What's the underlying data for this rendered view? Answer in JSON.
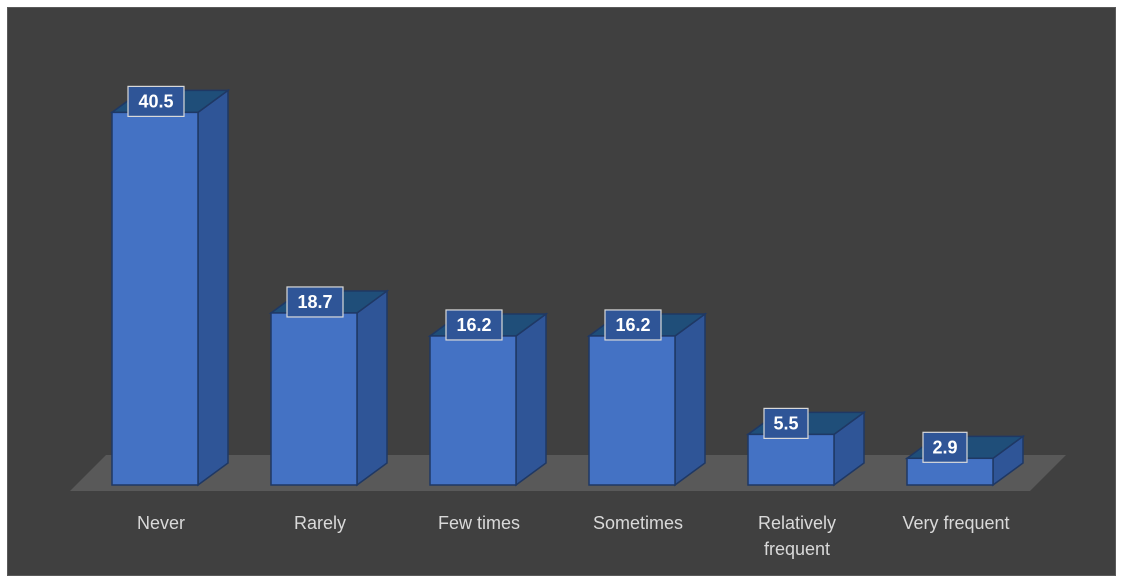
{
  "colors": {
    "background": "#404040",
    "bar_front": "#4472c4",
    "bar_side": "#2f5597",
    "bar_top": "#1f4e79",
    "bar_edge": "#1f3864",
    "floor": "#595959",
    "label_text": "#d9d9d9",
    "data_label_bg": "#2f5597",
    "data_label_border": "#d9d9d9"
  },
  "chart_data": {
    "type": "bar",
    "style": "3d-column",
    "categories": [
      "Never",
      "Rarely",
      "Few times",
      "Sometimes",
      "Relatively frequent",
      "Very frequent"
    ],
    "category_label_lines": [
      [
        "Never"
      ],
      [
        "Rarely"
      ],
      [
        "Few times"
      ],
      [
        "Sometimes"
      ],
      [
        "Relatively",
        "frequent"
      ],
      [
        "Very frequent"
      ]
    ],
    "values": [
      40.5,
      18.7,
      16.2,
      16.2,
      5.5,
      2.9
    ],
    "value_labels": [
      "40.5",
      "18.7",
      "16.2",
      "16.2",
      "5.5",
      "2.9"
    ],
    "title": "",
    "xlabel": "",
    "ylabel": "",
    "grid": false,
    "legend": "none"
  }
}
